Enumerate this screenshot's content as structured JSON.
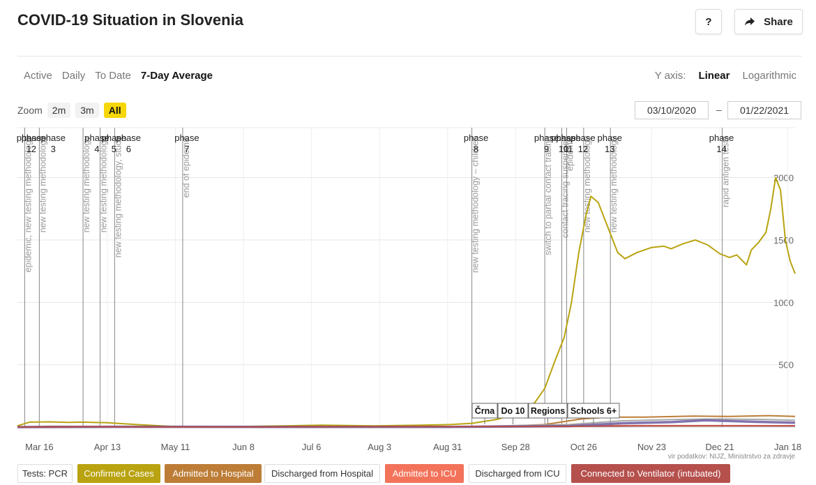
{
  "header": {
    "title": "COVID-19 Situation in Slovenia",
    "help_label": "?",
    "share_label": "Share"
  },
  "modes": {
    "tabs": [
      "Active",
      "Daily",
      "To Date",
      "7-Day Average"
    ],
    "active": "7-Day Average"
  },
  "yaxis": {
    "label": "Y axis:",
    "options": [
      "Linear",
      "Logarithmic"
    ],
    "active": "Linear"
  },
  "zoom": {
    "label": "Zoom",
    "options": [
      "2m",
      "3m",
      "All"
    ],
    "active": "All"
  },
  "date_range": {
    "from": "03/10/2020",
    "separator": "–",
    "to": "01/22/2021"
  },
  "source": "vir podatkov: NIJZ, Ministrstvo za zdravje",
  "legend": [
    {
      "label": "Tests: PCR",
      "bg": "#ffffff",
      "fg": "#333333"
    },
    {
      "label": "Confirmed Cases",
      "bg": "#b9a310",
      "fg": "#ffffff"
    },
    {
      "label": "Admitted to Hospital",
      "bg": "#bd7d36",
      "fg": "#ffffff"
    },
    {
      "label": "Discharged from Hospital",
      "bg": "#ffffff",
      "fg": "#333333"
    },
    {
      "label": "Admitted to ICU",
      "bg": "#f3735a",
      "fg": "#ffffff"
    },
    {
      "label": "Discharged from ICU",
      "bg": "#ffffff",
      "fg": "#333333"
    },
    {
      "label": "Connected to Ventilator (intubated)",
      "bg": "#b5504d",
      "fg": "#ffffff"
    }
  ],
  "chart_data": {
    "type": "line",
    "x_range": [
      "2020-03-07",
      "2021-01-21"
    ],
    "ylim": [
      0,
      2400
    ],
    "yticks": [
      500,
      1000,
      1500,
      2000
    ],
    "xticks": [
      {
        "date": "2020-03-16",
        "label": "Mar 16"
      },
      {
        "date": "2020-04-13",
        "label": "Apr 13"
      },
      {
        "date": "2020-05-11",
        "label": "May 11"
      },
      {
        "date": "2020-06-08",
        "label": "Jun 8"
      },
      {
        "date": "2020-07-06",
        "label": "Jul 6"
      },
      {
        "date": "2020-08-03",
        "label": "Aug 3"
      },
      {
        "date": "2020-08-31",
        "label": "Aug 31"
      },
      {
        "date": "2020-09-28",
        "label": "Sep 28"
      },
      {
        "date": "2020-10-26",
        "label": "Oct 26"
      },
      {
        "date": "2020-11-23",
        "label": "Nov 23"
      },
      {
        "date": "2020-12-21",
        "label": "Dec 21"
      },
      {
        "date": "2021-01-18",
        "label": "Jan 18"
      }
    ],
    "phases": [
      {
        "date": "2020-03-10",
        "label": [
          "phase",
          "1"
        ]
      },
      {
        "date": "2020-03-12",
        "label": [
          "phase",
          "2"
        ]
      },
      {
        "date": "2020-03-20",
        "label": [
          "phase",
          "3"
        ]
      },
      {
        "date": "2020-04-07",
        "label": [
          "phase",
          "4"
        ]
      },
      {
        "date": "2020-04-14",
        "label": [
          "phase",
          "5"
        ]
      },
      {
        "date": "2020-04-20",
        "label": [
          "phase",
          "6"
        ]
      },
      {
        "date": "2020-05-14",
        "label": [
          "phase",
          "7"
        ]
      },
      {
        "date": "2020-09-10",
        "label": [
          "phase",
          "8"
        ]
      },
      {
        "date": "2020-10-09",
        "label": [
          "phase",
          "9"
        ]
      },
      {
        "date": "2020-10-16",
        "label": [
          "phase",
          "10"
        ]
      },
      {
        "date": "2020-10-18",
        "label": [
          "phase",
          "11"
        ]
      },
      {
        "date": "2020-10-24",
        "label": [
          "phase",
          "12"
        ]
      },
      {
        "date": "2020-11-04",
        "label": [
          "phase",
          "13"
        ]
      },
      {
        "date": "2020-12-20",
        "label": [
          "phase",
          "14"
        ]
      }
    ],
    "event_lines": [
      {
        "date": "2020-03-10",
        "label": "epidemic, new testing methodology"
      },
      {
        "date": "2020-03-16",
        "label": "new testing methodology"
      },
      {
        "date": "2020-04-03",
        "label": "new testing methodology"
      },
      {
        "date": "2020-04-10",
        "label": "new testing methodology"
      },
      {
        "date": "2020-04-16",
        "label": "new testing methodology, study"
      },
      {
        "date": "2020-05-14",
        "label": "end of epidemic"
      },
      {
        "date": "2020-09-10",
        "label": "new testing methodology – children"
      },
      {
        "date": "2020-10-10",
        "label": "switch to partial contact tracing"
      },
      {
        "date": "2020-10-17",
        "label": "contact tracing suspended"
      },
      {
        "date": "2020-10-19",
        "label": "epidemic"
      },
      {
        "date": "2020-10-26",
        "label": "new testing methodology"
      },
      {
        "date": "2020-11-06",
        "label": "new testing methodology"
      },
      {
        "date": "2020-12-22",
        "label": "rapid antigen tests"
      }
    ],
    "flags": [
      "Črna",
      "Do 10",
      "Regions",
      "Schools 6+"
    ],
    "series": [
      {
        "name": "Confirmed Cases",
        "color": "#b9a310",
        "points": [
          [
            "2020-03-07",
            10
          ],
          [
            "2020-03-12",
            40
          ],
          [
            "2020-03-20",
            42
          ],
          [
            "2020-03-28",
            38
          ],
          [
            "2020-04-03",
            40
          ],
          [
            "2020-04-13",
            35
          ],
          [
            "2020-04-25",
            20
          ],
          [
            "2020-05-10",
            5
          ],
          [
            "2020-06-01",
            3
          ],
          [
            "2020-06-25",
            10
          ],
          [
            "2020-07-10",
            15
          ],
          [
            "2020-08-01",
            10
          ],
          [
            "2020-08-20",
            15
          ],
          [
            "2020-09-01",
            20
          ],
          [
            "2020-09-10",
            30
          ],
          [
            "2020-09-20",
            60
          ],
          [
            "2020-10-01",
            120
          ],
          [
            "2020-10-06",
            200
          ],
          [
            "2020-10-10",
            310
          ],
          [
            "2020-10-14",
            520
          ],
          [
            "2020-10-18",
            720
          ],
          [
            "2020-10-21",
            1000
          ],
          [
            "2020-10-24",
            1400
          ],
          [
            "2020-10-27",
            1700
          ],
          [
            "2020-10-29",
            1850
          ],
          [
            "2020-11-01",
            1800
          ],
          [
            "2020-11-05",
            1600
          ],
          [
            "2020-11-09",
            1400
          ],
          [
            "2020-11-12",
            1350
          ],
          [
            "2020-11-17",
            1400
          ],
          [
            "2020-11-23",
            1440
          ],
          [
            "2020-11-28",
            1450
          ],
          [
            "2020-12-01",
            1430
          ],
          [
            "2020-12-06",
            1470
          ],
          [
            "2020-12-11",
            1500
          ],
          [
            "2020-12-16",
            1460
          ],
          [
            "2020-12-21",
            1390
          ],
          [
            "2020-12-25",
            1360
          ],
          [
            "2020-12-28",
            1380
          ],
          [
            "2021-01-01",
            1300
          ],
          [
            "2021-01-03",
            1420
          ],
          [
            "2021-01-06",
            1480
          ],
          [
            "2021-01-09",
            1560
          ],
          [
            "2021-01-11",
            1750
          ],
          [
            "2021-01-13",
            2000
          ],
          [
            "2021-01-15",
            1900
          ],
          [
            "2021-01-17",
            1500
          ],
          [
            "2021-01-19",
            1330
          ],
          [
            "2021-01-21",
            1230
          ]
        ]
      },
      {
        "name": "Admitted to Hospital",
        "color": "#bd7d36",
        "points": [
          [
            "2020-03-07",
            0
          ],
          [
            "2020-03-20",
            6
          ],
          [
            "2020-04-10",
            5
          ],
          [
            "2020-05-01",
            2
          ],
          [
            "2020-08-01",
            2
          ],
          [
            "2020-09-20",
            5
          ],
          [
            "2020-10-10",
            20
          ],
          [
            "2020-10-25",
            65
          ],
          [
            "2020-11-05",
            80
          ],
          [
            "2020-11-20",
            80
          ],
          [
            "2020-12-10",
            88
          ],
          [
            "2020-12-25",
            85
          ],
          [
            "2021-01-10",
            92
          ],
          [
            "2021-01-21",
            85
          ]
        ]
      },
      {
        "name": "Discharged from Hospital",
        "color": "#a8a8a8",
        "points": [
          [
            "2020-03-07",
            0
          ],
          [
            "2020-04-10",
            4
          ],
          [
            "2020-05-01",
            2
          ],
          [
            "2020-09-01",
            2
          ],
          [
            "2020-10-20",
            20
          ],
          [
            "2020-11-10",
            50
          ],
          [
            "2020-12-01",
            60
          ],
          [
            "2020-12-20",
            65
          ],
          [
            "2021-01-10",
            60
          ],
          [
            "2021-01-21",
            55
          ]
        ]
      },
      {
        "name": "Admitted to ICU",
        "color": "#f3735a",
        "points": [
          [
            "2020-03-07",
            0
          ],
          [
            "2020-04-01",
            2
          ],
          [
            "2020-06-01",
            0
          ],
          [
            "2020-10-15",
            8
          ],
          [
            "2020-11-10",
            12
          ],
          [
            "2020-12-20",
            12
          ],
          [
            "2021-01-21",
            11
          ]
        ]
      },
      {
        "name": "Discharged from ICU",
        "color": "#6c5aa0",
        "points": [
          [
            "2020-03-07",
            0
          ],
          [
            "2020-04-15",
            2
          ],
          [
            "2020-09-01",
            1
          ],
          [
            "2020-10-20",
            8
          ],
          [
            "2020-11-10",
            30
          ],
          [
            "2020-12-01",
            40
          ],
          [
            "2020-12-15",
            55
          ],
          [
            "2021-01-05",
            42
          ],
          [
            "2021-01-21",
            35
          ]
        ]
      },
      {
        "name": "Connected to Ventilator (intubated)",
        "color": "#b5504d",
        "points": [
          [
            "2020-03-07",
            0
          ],
          [
            "2020-04-05",
            3
          ],
          [
            "2020-06-01",
            1
          ],
          [
            "2020-10-15",
            5
          ],
          [
            "2020-11-15",
            9
          ],
          [
            "2020-12-20",
            10
          ],
          [
            "2021-01-21",
            9
          ]
        ]
      }
    ]
  }
}
